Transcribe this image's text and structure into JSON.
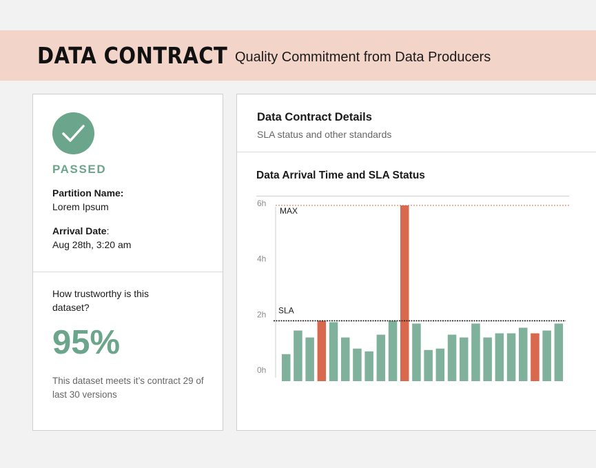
{
  "header": {
    "title": "DATA CONTRACT",
    "subtitle": "Quality Commitment from Data Producers"
  },
  "status_card": {
    "icon": "check-icon",
    "status": "PASSED",
    "partition_label": "Partition Name:",
    "partition_value": "Lorem Ipsum",
    "arrival_label": "Arrival Date",
    "arrival_colon": ":",
    "arrival_value": "Aug 28th, 3:20 am",
    "trust_question": "How trustworthy is this dataset?",
    "trust_percent": "95%",
    "trust_note": "This dataset meets it’s contract 29 of last 30 versions"
  },
  "details_card": {
    "title": "Data Contract Details",
    "subtitle": "SLA status and other standards",
    "chart_title": "Data Arrival Time and SLA Status"
  },
  "colors": {
    "ok": "#7fb19c",
    "breach": "#d9694e",
    "accent_green": "#6ba58b",
    "banner": "#f2d4c9"
  },
  "chart_data": {
    "type": "bar",
    "title": "Data Arrival Time and SLA Status",
    "y_ticks": [
      "0h",
      "2h",
      "4h",
      "6h"
    ],
    "y_tick_values": [
      0,
      2,
      4,
      6
    ],
    "ylim": [
      0,
      6
    ],
    "values": [
      0.55,
      1.4,
      1.15,
      1.75,
      1.7,
      1.15,
      0.75,
      0.65,
      1.25,
      1.75,
      5.9,
      1.65,
      0.7,
      0.75,
      1.25,
      1.15,
      1.65,
      1.15,
      1.3,
      1.3,
      1.5,
      1.3,
      1.4,
      1.65
    ],
    "status": [
      "ok",
      "ok",
      "ok",
      "breach",
      "ok",
      "ok",
      "ok",
      "ok",
      "ok",
      "ok",
      "breach",
      "ok",
      "ok",
      "ok",
      "ok",
      "ok",
      "ok",
      "ok",
      "ok",
      "ok",
      "ok",
      "breach",
      "ok",
      "ok"
    ],
    "heights_note": "",
    "sla": {
      "label": "SLA",
      "value": 1.75
    },
    "max": {
      "label": "MAX",
      "value": 5.9
    }
  }
}
